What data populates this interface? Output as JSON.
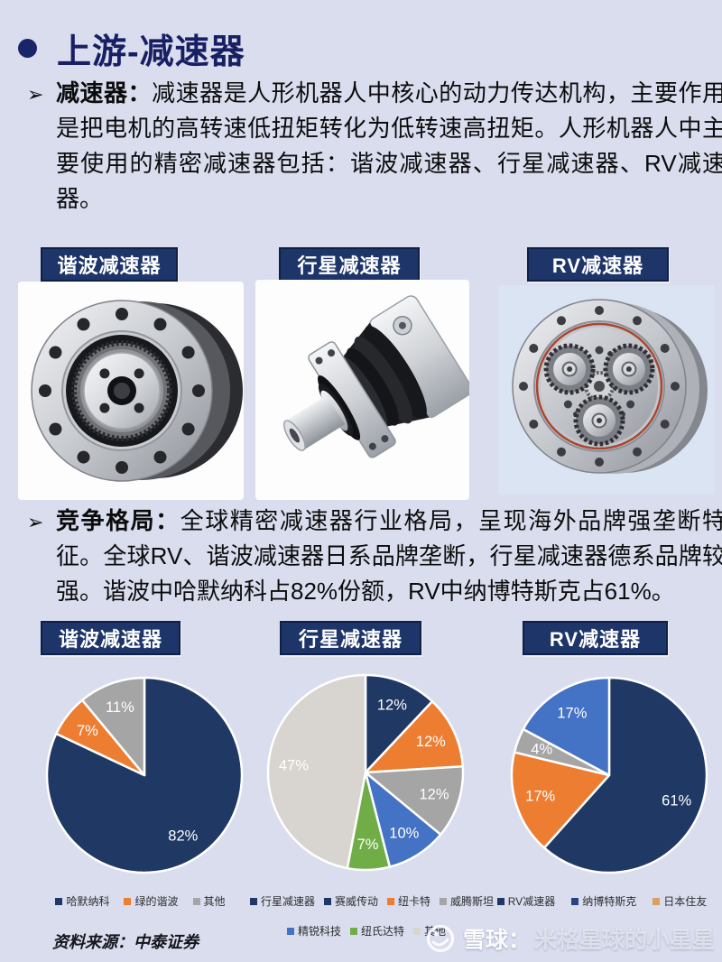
{
  "page": {
    "title": "上游-减速器",
    "background": "#d9ddee",
    "accent_navy": "#1e3569",
    "source": "资料来源：中泰证券",
    "watermark": {
      "site": "雪球：",
      "user": "米格星球的小星星"
    }
  },
  "sections": {
    "intro": {
      "bullet": "➢",
      "lead": "减速器：",
      "text": "减速器是人形机器人中核心的动力传达机构，主要作用是把电机的高转速低扭矩转化为低转速高扭矩。人形机器人中主要使用的精密减速器包括：谐波减速器、行星减速器、RV减速器。"
    },
    "competition": {
      "bullet": "➢",
      "lead": "竞争格局：",
      "text": "全球精密减速器行业格局，呈现海外品牌强垄断特征。全球RV、谐波减速器日系品牌垄断，行星减速器德系品牌较强。谐波中哈默纳科占82%份额，RV中纳博特斯克占61%。"
    }
  },
  "products": [
    {
      "label": "谐波减速器",
      "image": "harmonic-reducer-photo"
    },
    {
      "label": "行星减速器",
      "image": "planetary-reducer-photo"
    },
    {
      "label": "RV减速器",
      "image": "rv-reducer-photo"
    }
  ],
  "chart_data": [
    {
      "type": "pie",
      "title": "谐波减速器",
      "values": [
        82,
        7,
        11
      ],
      "slice_labels": [
        "82%",
        "7%",
        "11%"
      ],
      "colors": [
        "#1f3864",
        "#ed7d31",
        "#a5a5a5"
      ],
      "start_angle": 0,
      "legend_position": "bottom",
      "legend_rows": [
        [
          {
            "label": "哈默纳科",
            "color": "#1f3864"
          },
          {
            "label": "绿的谐波",
            "color": "#ed7d31"
          },
          {
            "label": "其他",
            "color": "#a5a5a5"
          }
        ]
      ]
    },
    {
      "type": "pie",
      "title": "行星减速器",
      "values": [
        12,
        12,
        12,
        10,
        7,
        47
      ],
      "slice_labels": [
        "12%",
        "12%",
        "12%",
        "10%",
        "7%",
        "47%"
      ],
      "colors": [
        "#1f3864",
        "#ed7d31",
        "#a5a5a5",
        "#4472c4",
        "#70ad47",
        "#d8d4cf"
      ],
      "start_angle": 0,
      "legend_position": "bottom",
      "legend_rows": [
        [
          {
            "label": "行星减速器",
            "color": "#1f3864"
          },
          {
            "label": "赛威传动",
            "color": "#1f3864"
          },
          {
            "label": "纽卡特",
            "color": "#ed7d31"
          },
          {
            "label": "威腾斯坦",
            "color": "#a5a5a5"
          }
        ],
        [
          {
            "label": "精锐科技",
            "color": "#4472c4"
          },
          {
            "label": "纽氏达特",
            "color": "#70ad47"
          },
          {
            "label": "其他",
            "color": "#d8d4cf"
          }
        ]
      ]
    },
    {
      "type": "pie",
      "title": "RV减速器",
      "values": [
        61,
        17,
        4,
        17
      ],
      "slice_labels": [
        "61%",
        "17%",
        "4%",
        "17%"
      ],
      "colors": [
        "#1f3864",
        "#ed7d31",
        "#a5a5a5",
        "#4472c4"
      ],
      "start_angle": 0,
      "legend_position": "bottom",
      "legend_rows": [
        [
          {
            "label": "RV减速器",
            "color": "#1f3864"
          },
          {
            "label": "纳博特斯克",
            "color": "#26457e"
          },
          {
            "label": "日本住友",
            "color": "#d9a15e"
          }
        ]
      ]
    }
  ]
}
